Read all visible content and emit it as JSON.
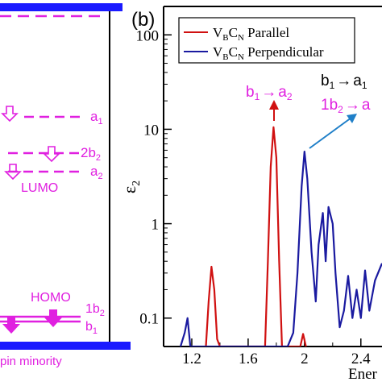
{
  "chart_data": [
    {
      "type": "diagram",
      "levels": [
        {
          "label": "a",
          "sub": "1"
        },
        {
          "label": "2b",
          "sub": "2"
        },
        {
          "label": "a",
          "sub": "2"
        },
        {
          "label": "1b",
          "sub": "2"
        },
        {
          "label": "b",
          "sub": "1"
        }
      ],
      "lumo_label": "LUMO",
      "homo_label": "HOMO",
      "footer_label": "pin minority",
      "colors": {
        "levels": "#e020e0",
        "bands": "#1a1aff",
        "frame": "#000000"
      }
    },
    {
      "type": "line",
      "panel_label": "(b)",
      "ylabel": "ε",
      "ylabel_sub": "2",
      "xlabel": "Ener",
      "yscale": "log",
      "ylim": [
        0.05,
        200
      ],
      "xlim": [
        1.0,
        2.55
      ],
      "x_ticks": [
        "1.2",
        "1.6",
        "2",
        "2.4"
      ],
      "x_tick_values": [
        1.2,
        1.6,
        2.0,
        2.4
      ],
      "y_ticks": [
        "0.1",
        "1",
        "10",
        "100"
      ],
      "y_tick_values": [
        0.1,
        1,
        10,
        100
      ],
      "legend_position": "top-right",
      "series": [
        {
          "name_main": "V",
          "name_sub1": "B",
          "name_mid": "C",
          "name_sub2": "N",
          "name_rest": " Parallel",
          "color": "#d01010",
          "x": [
            1.3,
            1.32,
            1.34,
            1.36,
            1.38,
            1.4,
            1.72,
            1.74,
            1.76,
            1.78,
            1.8,
            1.82,
            1.84,
            1.97,
            1.99,
            2.01
          ],
          "y": [
            0.05,
            0.15,
            0.35,
            0.2,
            0.06,
            0.05,
            0.05,
            0.4,
            4.0,
            10.5,
            5.0,
            0.4,
            0.05,
            0.05,
            0.068,
            0.05
          ]
        },
        {
          "name_main": "V",
          "name_sub1": "B",
          "name_mid": "C",
          "name_sub2": "N",
          "name_rest": " Perpendicular",
          "color": "#1a1aa0",
          "x": [
            1.12,
            1.15,
            1.17,
            1.19,
            1.88,
            1.92,
            1.95,
            1.98,
            2.0,
            2.02,
            2.05,
            2.08,
            2.1,
            2.13,
            2.15,
            2.17,
            2.2,
            2.22,
            2.25,
            2.28,
            2.31,
            2.34,
            2.37,
            2.4,
            2.43,
            2.46,
            2.5,
            2.55
          ],
          "y": [
            0.05,
            0.07,
            0.1,
            0.05,
            0.05,
            0.07,
            0.3,
            2.5,
            5.8,
            3.0,
            0.5,
            0.15,
            0.6,
            1.3,
            0.4,
            1.5,
            1.0,
            0.3,
            0.08,
            0.12,
            0.28,
            0.1,
            0.2,
            0.1,
            0.32,
            0.12,
            0.25,
            0.38
          ]
        }
      ],
      "annotations": [
        {
          "text_main": "b",
          "sub1": "1",
          "arrow": "→",
          "text_b": "a",
          "sub2": "2",
          "color": "#e020e0"
        },
        {
          "text_main": "b",
          "sub1": "1",
          "arrow": "→",
          "text_b": "a",
          "sub2": "1",
          "color": "#000000"
        },
        {
          "text_main": "1b",
          "sub1": "2",
          "arrow": "→",
          "text_b": "a",
          "sub2": "",
          "color": "#e020e0"
        }
      ]
    }
  ]
}
